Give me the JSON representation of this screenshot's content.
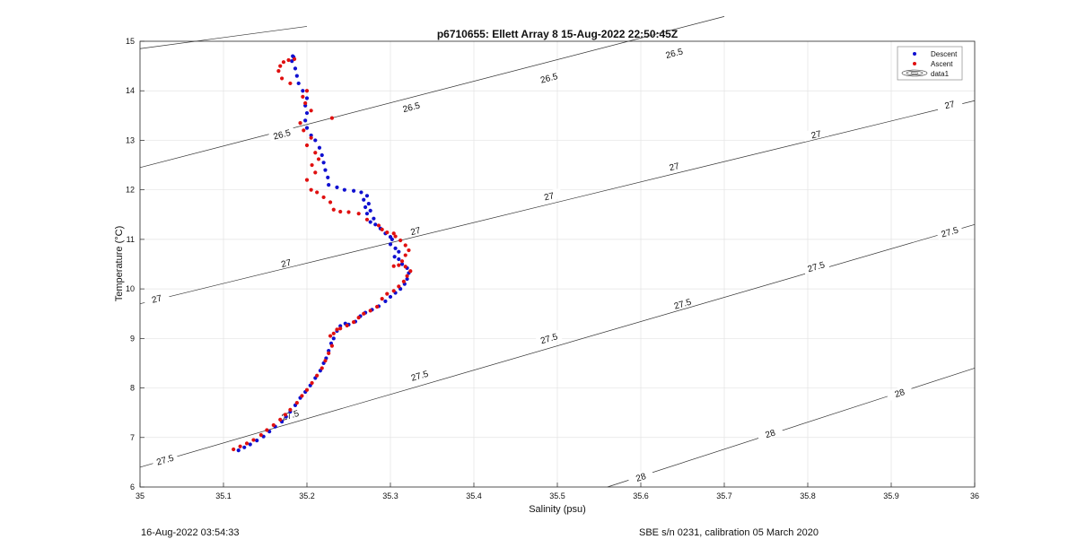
{
  "colors": {
    "descent": "#1010d0",
    "ascent": "#e01010",
    "grid": "#e3e3e3",
    "axis": "#262626",
    "contour": "#333333"
  },
  "footer": {
    "left": "16-Aug-2022 03:54:33",
    "right": "SBE s/n 0231, calibration 05 March 2020"
  },
  "chart_data": {
    "type": "scatter",
    "title": "p6710655: Ellett Array 8 15-Aug-2022 22:50:45Z",
    "xlabel": "Salinity (psu)",
    "ylabel": "Temperature (°C)",
    "xlim": [
      35,
      36
    ],
    "ylim": [
      6,
      15
    ],
    "xticks": [
      "35",
      "35.1",
      "35.2",
      "35.3",
      "35.4",
      "35.5",
      "35.6",
      "35.7",
      "35.8",
      "35.9",
      "36"
    ],
    "yticks": [
      "6",
      "7",
      "8",
      "9",
      "10",
      "11",
      "12",
      "13",
      "14",
      "15"
    ],
    "grid": true,
    "legend": {
      "placement": "top-right",
      "entries": [
        {
          "label": "Descent",
          "marker": "dot",
          "color": "#1010d0"
        },
        {
          "label": "Ascent",
          "marker": "dot",
          "color": "#e01010"
        },
        {
          "label": "data1",
          "marker": "contour"
        }
      ]
    },
    "contours": [
      {
        "level": 26.5,
        "points": [
          [
            35.0,
            14.85
          ],
          [
            35.2,
            15.3
          ]
        ],
        "labels": []
      },
      {
        "level": 26.5,
        "points": [
          [
            35.0,
            12.45
          ],
          [
            35.7,
            15.5
          ]
        ],
        "labels": [
          [
            35.17,
            13.12
          ],
          [
            35.325,
            13.67
          ],
          [
            35.49,
            14.26
          ],
          [
            35.64,
            14.76
          ]
        ]
      },
      {
        "level": 27,
        "points": [
          [
            35.0,
            9.7
          ],
          [
            36.0,
            13.8
          ]
        ],
        "labels": [
          [
            35.02,
            9.8
          ],
          [
            35.175,
            10.52
          ],
          [
            35.33,
            11.17
          ],
          [
            35.49,
            11.87
          ],
          [
            35.64,
            12.47
          ],
          [
            35.81,
            13.12
          ],
          [
            35.97,
            13.72
          ]
        ]
      },
      {
        "level": 27.5,
        "points": [
          [
            35.0,
            6.4
          ],
          [
            36.0,
            11.3
          ]
        ],
        "labels": [
          [
            35.03,
            6.55
          ],
          [
            35.18,
            7.45
          ],
          [
            35.335,
            8.25
          ],
          [
            35.49,
            9.0
          ],
          [
            35.65,
            9.7
          ],
          [
            35.81,
            10.45
          ],
          [
            35.97,
            11.15
          ]
        ]
      },
      {
        "level": 28,
        "points": [
          [
            35.56,
            6.0
          ],
          [
            36.0,
            8.4
          ]
        ],
        "labels": [
          [
            35.6,
            6.2
          ],
          [
            35.755,
            7.08
          ],
          [
            35.91,
            7.9
          ]
        ]
      }
    ],
    "series": [
      {
        "name": "Descent",
        "color": "#1010d0",
        "points": [
          [
            35.118,
            6.74
          ],
          [
            35.125,
            6.8
          ],
          [
            35.132,
            6.86
          ],
          [
            35.14,
            6.94
          ],
          [
            35.148,
            7.02
          ],
          [
            35.155,
            7.12
          ],
          [
            35.162,
            7.22
          ],
          [
            35.17,
            7.32
          ],
          [
            35.175,
            7.42
          ],
          [
            35.18,
            7.52
          ],
          [
            35.186,
            7.65
          ],
          [
            35.192,
            7.8
          ],
          [
            35.198,
            7.92
          ],
          [
            35.204,
            8.05
          ],
          [
            35.21,
            8.2
          ],
          [
            35.216,
            8.35
          ],
          [
            35.22,
            8.5
          ],
          [
            35.223,
            8.6
          ],
          [
            35.226,
            8.75
          ],
          [
            35.229,
            8.9
          ],
          [
            35.232,
            9.0
          ],
          [
            35.236,
            9.15
          ],
          [
            35.24,
            9.25
          ],
          [
            35.246,
            9.3
          ],
          [
            35.25,
            9.28
          ],
          [
            35.258,
            9.34
          ],
          [
            35.264,
            9.45
          ],
          [
            35.27,
            9.52
          ],
          [
            35.278,
            9.58
          ],
          [
            35.286,
            9.65
          ],
          [
            35.294,
            9.75
          ],
          [
            35.3,
            9.84
          ],
          [
            35.306,
            9.92
          ],
          [
            35.312,
            10.0
          ],
          [
            35.317,
            10.1
          ],
          [
            35.32,
            10.2
          ],
          [
            35.322,
            10.32
          ],
          [
            35.32,
            10.42
          ],
          [
            35.314,
            10.5
          ],
          [
            35.31,
            10.6
          ],
          [
            35.305,
            10.65
          ],
          [
            35.31,
            10.75
          ],
          [
            35.306,
            10.82
          ],
          [
            35.3,
            10.9
          ],
          [
            35.302,
            11.0
          ],
          [
            35.3,
            11.05
          ],
          [
            35.294,
            11.12
          ],
          [
            35.288,
            11.22
          ],
          [
            35.282,
            11.3
          ],
          [
            35.276,
            11.35
          ],
          [
            35.28,
            11.42
          ],
          [
            35.272,
            11.52
          ],
          [
            35.276,
            11.58
          ],
          [
            35.27,
            11.65
          ],
          [
            35.274,
            11.72
          ],
          [
            35.268,
            11.8
          ],
          [
            35.272,
            11.88
          ],
          [
            35.265,
            11.95
          ],
          [
            35.256,
            11.98
          ],
          [
            35.245,
            12.0
          ],
          [
            35.236,
            12.05
          ],
          [
            35.226,
            12.1
          ],
          [
            35.225,
            12.25
          ],
          [
            35.222,
            12.4
          ],
          [
            35.22,
            12.55
          ],
          [
            35.218,
            12.7
          ],
          [
            35.215,
            12.85
          ],
          [
            35.21,
            13.0
          ],
          [
            35.205,
            13.1
          ],
          [
            35.2,
            13.25
          ],
          [
            35.198,
            13.4
          ],
          [
            35.2,
            13.55
          ],
          [
            35.198,
            13.7
          ],
          [
            35.2,
            13.85
          ],
          [
            35.195,
            14.0
          ],
          [
            35.19,
            14.15
          ],
          [
            35.188,
            14.3
          ],
          [
            35.186,
            14.45
          ],
          [
            35.182,
            14.6
          ],
          [
            35.184,
            14.68
          ],
          [
            35.183,
            14.7
          ]
        ]
      },
      {
        "name": "Ascent",
        "color": "#e01010",
        "points": [
          [
            35.112,
            6.76
          ],
          [
            35.12,
            6.82
          ],
          [
            35.128,
            6.88
          ],
          [
            35.136,
            6.95
          ],
          [
            35.145,
            7.05
          ],
          [
            35.152,
            7.15
          ],
          [
            35.16,
            7.25
          ],
          [
            35.168,
            7.36
          ],
          [
            35.174,
            7.46
          ],
          [
            35.18,
            7.56
          ],
          [
            35.188,
            7.7
          ],
          [
            35.194,
            7.84
          ],
          [
            35.2,
            7.96
          ],
          [
            35.206,
            8.1
          ],
          [
            35.212,
            8.25
          ],
          [
            35.218,
            8.4
          ],
          [
            35.222,
            8.55
          ],
          [
            35.226,
            8.7
          ],
          [
            35.23,
            8.85
          ],
          [
            35.228,
            9.05
          ],
          [
            35.232,
            9.1
          ],
          [
            35.236,
            9.18
          ],
          [
            35.24,
            9.2
          ],
          [
            35.248,
            9.26
          ],
          [
            35.256,
            9.33
          ],
          [
            35.262,
            9.42
          ],
          [
            35.268,
            9.5
          ],
          [
            35.276,
            9.56
          ],
          [
            35.284,
            9.64
          ],
          [
            35.29,
            9.8
          ],
          [
            35.296,
            9.9
          ],
          [
            35.304,
            9.96
          ],
          [
            35.31,
            10.05
          ],
          [
            35.316,
            10.15
          ],
          [
            35.32,
            10.26
          ],
          [
            35.324,
            10.36
          ],
          [
            35.318,
            10.45
          ],
          [
            35.31,
            10.48
          ],
          [
            35.304,
            10.46
          ],
          [
            35.314,
            10.56
          ],
          [
            35.318,
            10.68
          ],
          [
            35.322,
            10.78
          ],
          [
            35.318,
            10.88
          ],
          [
            35.312,
            10.98
          ],
          [
            35.306,
            11.06
          ],
          [
            35.304,
            11.12
          ],
          [
            35.296,
            11.14
          ],
          [
            35.29,
            11.2
          ],
          [
            35.286,
            11.28
          ],
          [
            35.272,
            11.4
          ],
          [
            35.262,
            11.52
          ],
          [
            35.25,
            11.55
          ],
          [
            35.24,
            11.56
          ],
          [
            35.232,
            11.6
          ],
          [
            35.228,
            11.75
          ],
          [
            35.22,
            11.85
          ],
          [
            35.212,
            11.95
          ],
          [
            35.205,
            12.0
          ],
          [
            35.2,
            12.2
          ],
          [
            35.21,
            12.35
          ],
          [
            35.206,
            12.5
          ],
          [
            35.214,
            12.62
          ],
          [
            35.21,
            12.75
          ],
          [
            35.2,
            12.9
          ],
          [
            35.205,
            13.05
          ],
          [
            35.196,
            13.2
          ],
          [
            35.192,
            13.35
          ],
          [
            35.23,
            13.45
          ],
          [
            35.205,
            13.6
          ],
          [
            35.198,
            13.75
          ],
          [
            35.195,
            13.88
          ],
          [
            35.2,
            14.0
          ],
          [
            35.18,
            14.15
          ],
          [
            35.17,
            14.25
          ],
          [
            35.166,
            14.4
          ],
          [
            35.168,
            14.5
          ],
          [
            35.172,
            14.58
          ],
          [
            35.178,
            14.62
          ],
          [
            35.185,
            14.64
          ]
        ]
      }
    ]
  }
}
